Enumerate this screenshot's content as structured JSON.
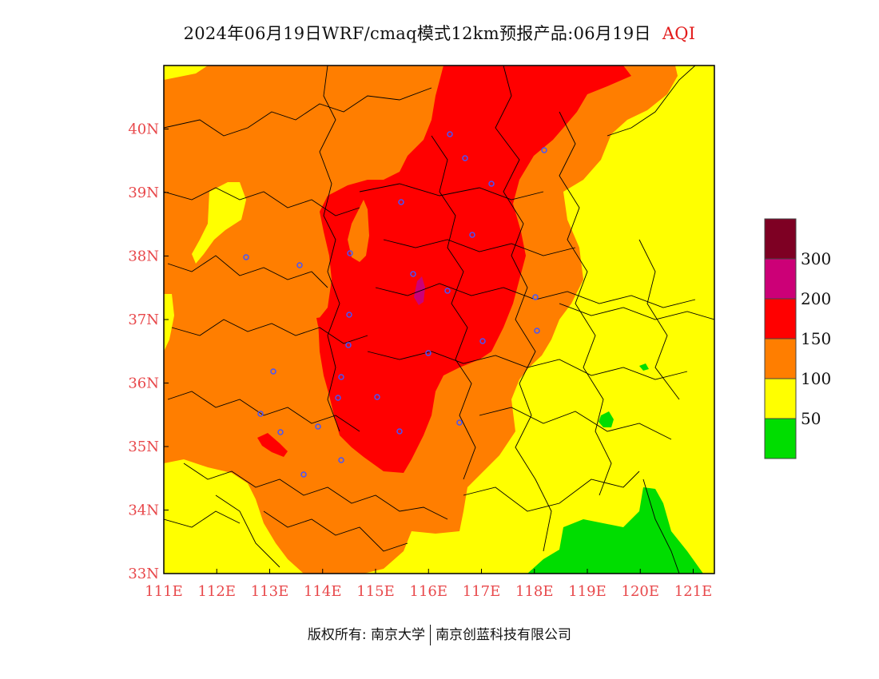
{
  "header": {
    "title": "2024年06月19日WRF/cmaq模式12km预报产品:06月19日",
    "variable": "AQI"
  },
  "map": {
    "x_axis_labels": [
      "111E",
      "112E",
      "113E",
      "114E",
      "115E",
      "116E",
      "117E",
      "118E",
      "119E",
      "120E",
      "121E"
    ],
    "y_axis_labels": [
      "33N",
      "34N",
      "35N",
      "36N",
      "37N",
      "38N",
      "39N",
      "40N"
    ],
    "lon_range": [
      111,
      121.4
    ],
    "lat_range": [
      33,
      41
    ],
    "aqi_levels": [
      {
        "label": "0-50",
        "color": "#00dd00"
      },
      {
        "label": "50-100",
        "color": "#ffff00"
      },
      {
        "label": "100-150",
        "color": "#ff7e00"
      },
      {
        "label": "150-200",
        "color": "#ff0000"
      },
      {
        "label": "200-300",
        "color": "#cc0077"
      },
      {
        "label": ">300",
        "color": "#7e0023"
      }
    ],
    "station_color": "#4455ff"
  },
  "legend": {
    "labels": [
      "50",
      "100",
      "150",
      "200",
      "300"
    ],
    "colors": [
      "#00dd00",
      "#ffff00",
      "#ff7e00",
      "#ff0000",
      "#cc0077",
      "#7e0023"
    ]
  },
  "footer": {
    "copyright": "版权所有: 南京大学",
    "company": "南京创蓝科技有限公司"
  }
}
